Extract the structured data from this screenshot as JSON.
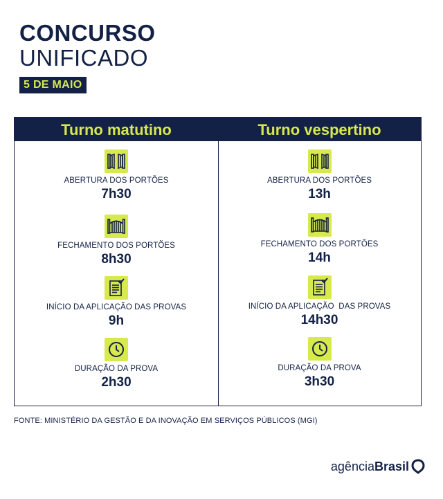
{
  "header": {
    "title_line1": "CONCURSO",
    "title_line2": "UNIFICADO",
    "date": "5 DE MAIO"
  },
  "colors": {
    "navy": "#132146",
    "lime": "#d7e94d"
  },
  "shifts": [
    {
      "title": "Turno matutino",
      "items": [
        {
          "icon": "open-gate-icon",
          "label": "ABERTURA DOS PORTÕES",
          "value": "7h30"
        },
        {
          "icon": "closed-gate-icon",
          "label": "FECHAMENTO DOS PORTÕES",
          "value": "8h30"
        },
        {
          "icon": "exam-sheet-icon",
          "label": "INÍCIO DA APLICAÇÃO DAS PROVAS",
          "value": "9h"
        },
        {
          "icon": "clock-icon",
          "label": "DURAÇÃO DA PROVA",
          "value": "2h30"
        }
      ]
    },
    {
      "title": "Turno vespertino",
      "items": [
        {
          "icon": "open-gate-icon",
          "label": "ABERTURA DOS PORTÕES",
          "value": "13h"
        },
        {
          "icon": "closed-gate-icon",
          "label": "FECHAMENTO DOS PORTÕES",
          "value": "14h"
        },
        {
          "icon": "exam-sheet-icon",
          "label": "INÍCIO DA APLICAÇÃO  DAS PROVAS",
          "value": "14h30"
        },
        {
          "icon": "clock-icon",
          "label": "DURAÇÃO DA PROVA",
          "value": "3h30"
        }
      ]
    }
  ],
  "footer": {
    "source": "FONTE: MINISTÉRIO DA GESTÃO E DA INOVAÇÃO EM SERVIÇOS PÚBLICOS (MGI)",
    "logo_light": "agência",
    "logo_bold": "Brasil"
  }
}
